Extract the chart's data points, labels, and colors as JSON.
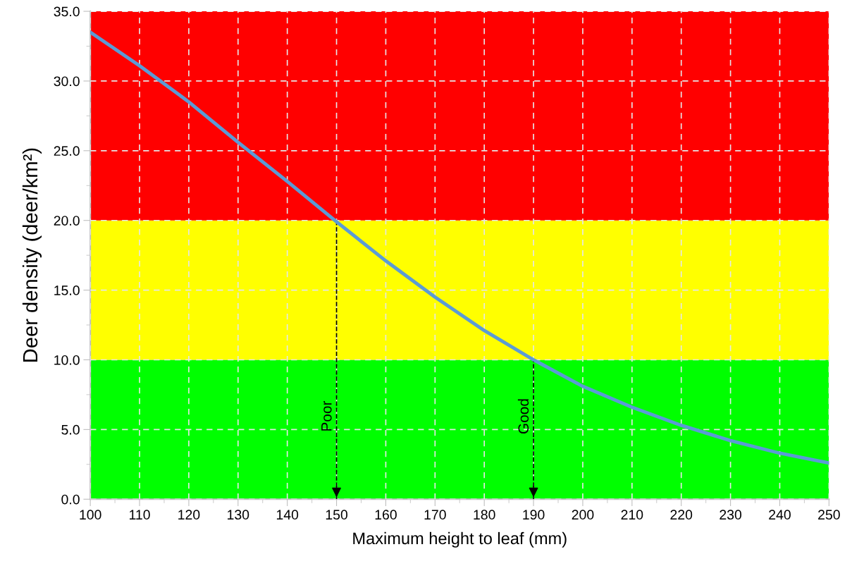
{
  "chart_data": {
    "type": "line",
    "xlabel": "Maximum height to leaf (mm)",
    "ylabel": "Deer density (deer/km²)",
    "x": [
      100,
      110,
      120,
      130,
      140,
      150,
      160,
      170,
      180,
      190,
      200,
      210,
      220,
      230,
      240,
      250
    ],
    "series": [
      {
        "color": "#5b9bd5",
        "values": [
          33.5,
          31.1,
          28.5,
          25.6,
          22.8,
          19.9,
          17.1,
          14.5,
          12.1,
          10.0,
          8.1,
          6.6,
          5.3,
          4.2,
          3.3,
          2.6
        ]
      }
    ],
    "xlim": [
      100,
      250
    ],
    "xticks": [
      100,
      110,
      120,
      130,
      140,
      150,
      160,
      170,
      180,
      190,
      200,
      210,
      220,
      230,
      240,
      250
    ],
    "ylim": [
      0,
      35
    ],
    "yticks": [
      {
        "value": 0,
        "label": "0.0"
      },
      {
        "value": 5,
        "label": "5.0"
      },
      {
        "value": 10,
        "label": "10.0"
      },
      {
        "value": 15,
        "label": "15.0"
      },
      {
        "value": 20,
        "label": "20.0"
      },
      {
        "value": 25,
        "label": "25.0"
      },
      {
        "value": 30,
        "label": "30.0"
      },
      {
        "value": 35,
        "label": "35.0"
      }
    ],
    "bands": [
      {
        "axis": "y",
        "from": 0,
        "to": 10,
        "color": "#00ff00"
      },
      {
        "axis": "y",
        "from": 10,
        "to": 20,
        "color": "#ffff00"
      },
      {
        "axis": "y",
        "from": 20,
        "to": 35,
        "color": "#ff0000"
      }
    ],
    "ref_lines": [
      {
        "axis": "x",
        "value": 150,
        "label": "Poor",
        "color": "#000000",
        "line_style": "dashed"
      },
      {
        "axis": "x",
        "value": 190,
        "label": "Good",
        "color": "#000000",
        "line_style": "dashed"
      }
    ],
    "grid": true,
    "marker": "none",
    "line_style": "solid"
  }
}
